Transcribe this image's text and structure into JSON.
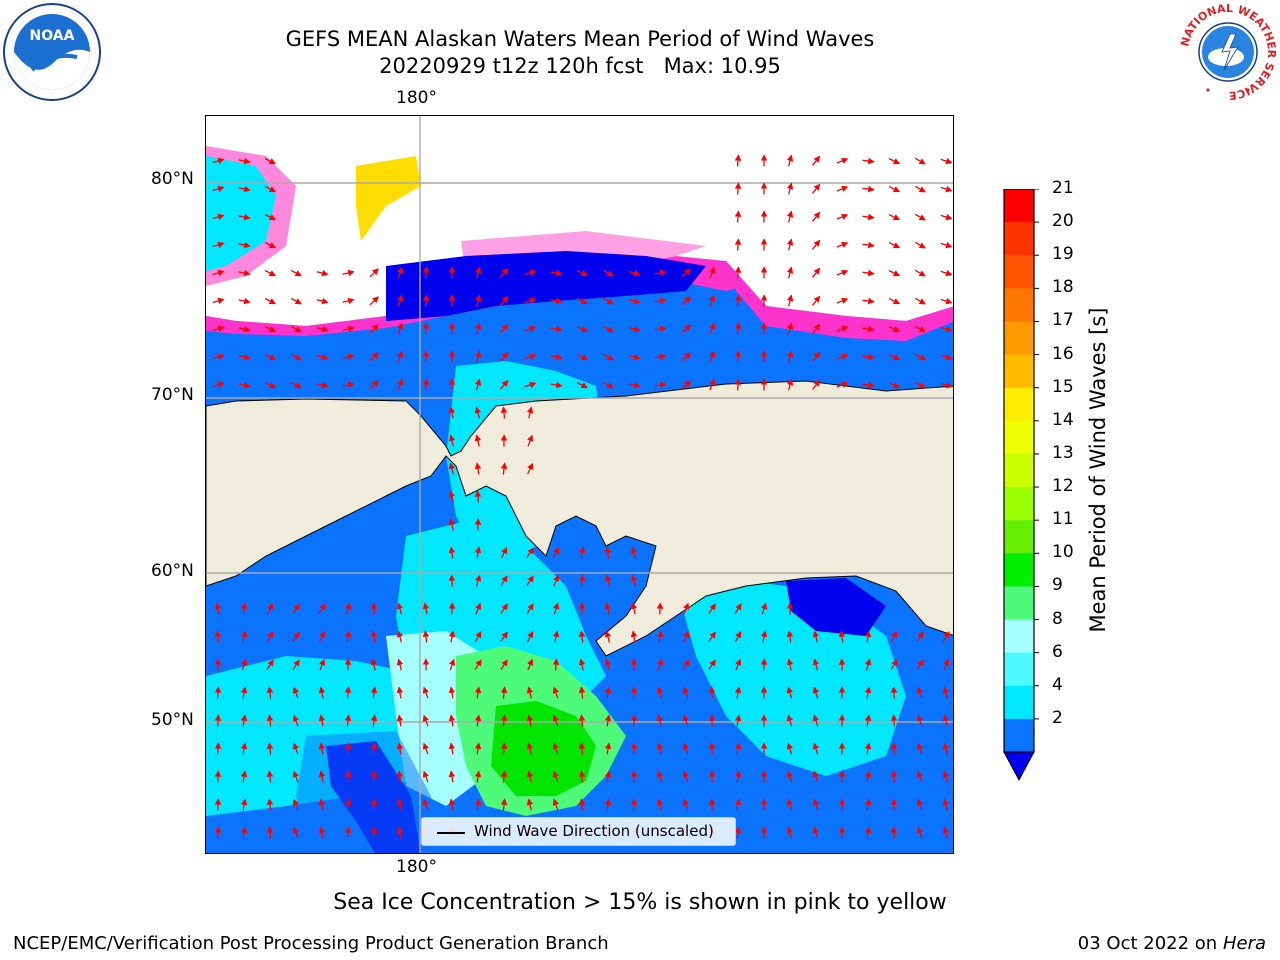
{
  "title": {
    "line1": "GEFS MEAN Alaskan Waters Mean Period of Wind Waves",
    "line2": "20220929 t12z 120h fcst   Max: 10.95"
  },
  "logos": {
    "left": "noaa-logo",
    "right": "nws-logo",
    "noaa_text": "NOAA",
    "nws_ring_text": "NATIONAL WEATHER SERVICE"
  },
  "map": {
    "region": "Alaskan Waters",
    "projection_labels": {
      "lon_top": "180°",
      "lon_bottom": "180°",
      "lat_labels": [
        "80°N",
        "70°N",
        "60°N",
        "50°N"
      ]
    },
    "land_color": "#efecdc",
    "ocean_field_colors": [
      "#0000ee",
      "#0a73ff",
      "#00e8ff",
      "#4dfaff",
      "#a6ffff",
      "#4dfa7a",
      "#00e600"
    ],
    "ice_colors": [
      "#ff33cc",
      "#ff88dd",
      "#ffdd00"
    ],
    "arrow_color": "#ff0000",
    "gridline_color": "#aaaaaa"
  },
  "legend": {
    "label": "Wind Wave Direction (unscaled)"
  },
  "colorbar": {
    "title": "Mean Period of Wind Waves [s]",
    "ticks": [
      "21",
      "20",
      "19",
      "18",
      "17",
      "16",
      "15",
      "14",
      "13",
      "12",
      "11",
      "10",
      "9",
      "8",
      "6",
      "4",
      "2"
    ],
    "colors_top_to_bottom": [
      "#ff0000",
      "#ff3300",
      "#ff5500",
      "#ff7700",
      "#ff9900",
      "#ffbb00",
      "#ffee00",
      "#eeff00",
      "#ccff00",
      "#99ff00",
      "#66ee00",
      "#00ee00",
      "#4dfa7a",
      "#a6ffff",
      "#4dfaff",
      "#00e8ff",
      "#0a73ff"
    ],
    "under_color": "#0000ee"
  },
  "ice_note": "Sea Ice Concentration > 15% is shown in pink to yellow",
  "footer": {
    "left": "NCEP/EMC/Verification Post Processing Product Generation Branch",
    "date": "03 Oct 2022 on",
    "host": "Hera"
  }
}
